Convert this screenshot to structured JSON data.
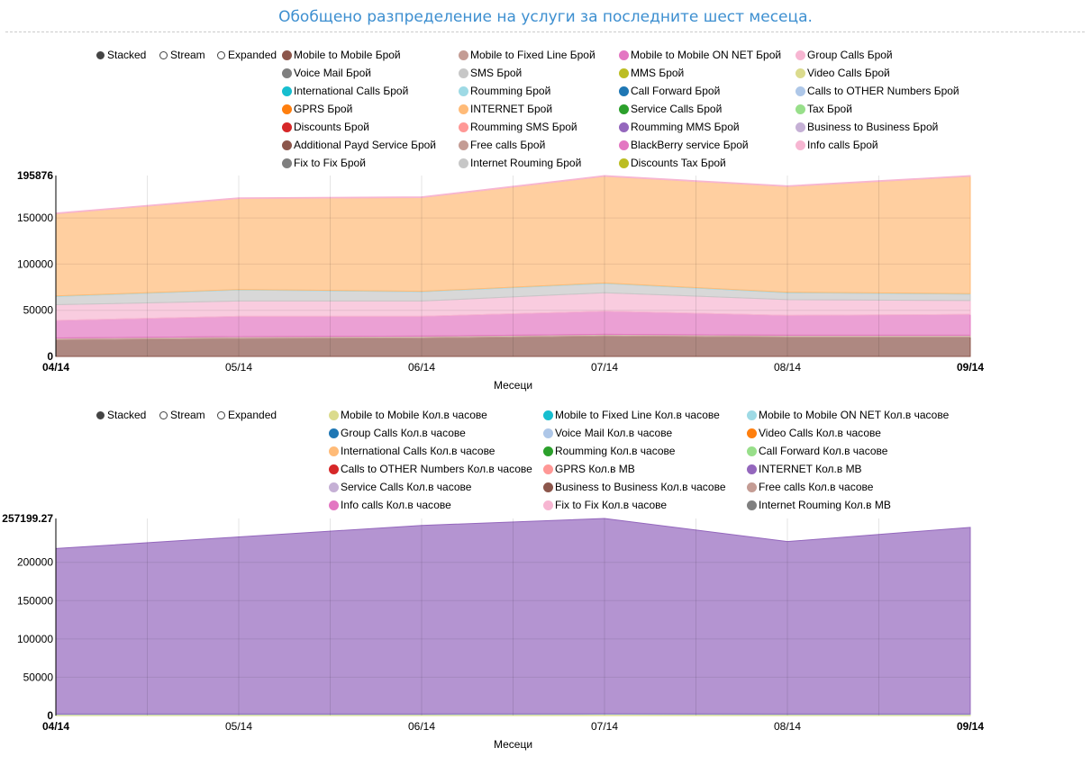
{
  "page_title": "Обобщено разпределение на услуги за последните шест месеца.",
  "controls": {
    "stacked": "Stacked",
    "stream": "Stream",
    "expanded": "Expanded",
    "selected": "Stacked"
  },
  "chart_data": [
    {
      "type": "area",
      "stacked": true,
      "xlabel": "Месеци",
      "categories": [
        "04/14",
        "05/14",
        "06/14",
        "07/14",
        "08/14",
        "09/14"
      ],
      "ylim": [
        0,
        195876
      ],
      "yticks": [
        "0",
        "50000",
        "100000",
        "150000",
        "195876"
      ],
      "grid": true,
      "legend": "top",
      "series": [
        {
          "name": "Mobile to Mobile Брой",
          "color": "#8c564b",
          "values": [
            18000,
            19500,
            20000,
            22000,
            21000,
            21000
          ]
        },
        {
          "name": "Mobile to Fixed Line Брой",
          "color": "#c49c94",
          "values": [
            2000,
            2000,
            2000,
            2000,
            2000,
            2000
          ]
        },
        {
          "name": "Mobile to Mobile ON NET Брой",
          "color": "#e377c2",
          "values": [
            19000,
            22000,
            21500,
            25000,
            21500,
            22500
          ]
        },
        {
          "name": "Group Calls Брой",
          "color": "#f7b6d2",
          "values": [
            17000,
            16500,
            16500,
            20000,
            17000,
            15000
          ]
        },
        {
          "name": "Voice Mail Брой",
          "color": "#7f7f7f",
          "values": [
            0,
            0,
            0,
            0,
            0,
            0
          ]
        },
        {
          "name": "SMS Брой",
          "color": "#c7c7c7",
          "values": [
            9000,
            12000,
            10000,
            10000,
            7500,
            7000
          ]
        },
        {
          "name": "MMS Брой",
          "color": "#bcbd22",
          "values": [
            0,
            0,
            0,
            0,
            0,
            0
          ]
        },
        {
          "name": "Video Calls Брой",
          "color": "#dbdb8d",
          "values": [
            0,
            0,
            0,
            0,
            0,
            0
          ]
        },
        {
          "name": "International Calls Брой",
          "color": "#17becf",
          "values": [
            0,
            0,
            0,
            0,
            0,
            0
          ]
        },
        {
          "name": "Roumming Брой",
          "color": "#9edae5",
          "values": [
            500,
            500,
            500,
            500,
            500,
            500
          ]
        },
        {
          "name": "Call Forward Брой",
          "color": "#1f77b4",
          "values": [
            0,
            0,
            0,
            0,
            0,
            0
          ]
        },
        {
          "name": "Calls to OTHER Numbers Брой",
          "color": "#aec7e8",
          "values": [
            0,
            0,
            0,
            0,
            0,
            0
          ]
        },
        {
          "name": "GPRS Брой",
          "color": "#ff7f0e",
          "values": [
            0,
            0,
            0,
            0,
            0,
            0
          ]
        },
        {
          "name": "INTERNET Брой",
          "color": "#ffbb78",
          "values": [
            89000,
            98500,
            101500,
            115500,
            114500,
            127000
          ]
        },
        {
          "name": "Service Calls Брой",
          "color": "#2ca02c",
          "values": [
            0,
            0,
            0,
            0,
            0,
            0
          ]
        },
        {
          "name": "Tax Брой",
          "color": "#98df8a",
          "values": [
            0,
            0,
            0,
            0,
            0,
            0
          ]
        },
        {
          "name": "Discounts Брой",
          "color": "#d62728",
          "values": [
            0,
            0,
            0,
            0,
            0,
            0
          ]
        },
        {
          "name": "Roumming SMS Брой",
          "color": "#ff9896",
          "values": [
            0,
            0,
            0,
            0,
            0,
            0
          ]
        },
        {
          "name": "Roumming MMS Брой",
          "color": "#9467bd",
          "values": [
            0,
            0,
            0,
            0,
            0,
            0
          ]
        },
        {
          "name": "Business to Business Брой",
          "color": "#c5b0d5",
          "values": [
            0,
            0,
            0,
            0,
            0,
            0
          ]
        },
        {
          "name": "Additional Payd Service Брой",
          "color": "#8c564b",
          "values": [
            0,
            0,
            0,
            0,
            0,
            0
          ]
        },
        {
          "name": "Free calls Брой",
          "color": "#c49c94",
          "values": [
            0,
            0,
            0,
            0,
            0,
            0
          ]
        },
        {
          "name": "BlackBerry service Брой",
          "color": "#e377c2",
          "values": [
            0,
            0,
            0,
            0,
            0,
            0
          ]
        },
        {
          "name": "Info calls Брой",
          "color": "#f7b6d2",
          "values": [
            800,
            800,
            800,
            876,
            800,
            800
          ]
        },
        {
          "name": "Fix to Fix Брой",
          "color": "#7f7f7f",
          "values": [
            0,
            0,
            0,
            0,
            0,
            0
          ]
        },
        {
          "name": "Internet Rouming Брой",
          "color": "#c7c7c7",
          "values": [
            0,
            0,
            0,
            0,
            0,
            0
          ]
        },
        {
          "name": "Discounts Tax Брой",
          "color": "#bcbd22",
          "values": [
            0,
            0,
            0,
            0,
            0,
            0
          ]
        }
      ]
    },
    {
      "type": "area",
      "stacked": true,
      "xlabel": "Месеци",
      "categories": [
        "04/14",
        "05/14",
        "06/14",
        "07/14",
        "08/14",
        "09/14"
      ],
      "ylim": [
        0,
        257199.27
      ],
      "yticks": [
        "0",
        "50000",
        "100000",
        "150000",
        "200000",
        "257199.27"
      ],
      "grid": true,
      "legend": "top",
      "series": [
        {
          "name": "Mobile to Mobile Кол.в часове",
          "color": "#dbdb8d",
          "values": [
            1400,
            1500,
            1500,
            1699.27,
            1500,
            1500
          ]
        },
        {
          "name": "Mobile to Fixed Line Кол.в часове",
          "color": "#17becf",
          "values": [
            0,
            0,
            0,
            0,
            0,
            0
          ]
        },
        {
          "name": "Mobile to Mobile ON NET Кол.в часове",
          "color": "#9edae5",
          "values": [
            600,
            600,
            600,
            600,
            600,
            600
          ]
        },
        {
          "name": "Group Calls Кол.в часове",
          "color": "#1f77b4",
          "values": [
            0,
            0,
            0,
            0,
            0,
            0
          ]
        },
        {
          "name": "Voice Mail Кол.в часове",
          "color": "#aec7e8",
          "values": [
            0,
            0,
            0,
            0,
            0,
            0
          ]
        },
        {
          "name": "Video Calls Кол.в часове",
          "color": "#ff7f0e",
          "values": [
            0,
            0,
            0,
            0,
            0,
            0
          ]
        },
        {
          "name": "International Calls Кол.в часове",
          "color": "#ffbb78",
          "values": [
            0,
            0,
            0,
            0,
            0,
            0
          ]
        },
        {
          "name": "Roumming Кол.в часове",
          "color": "#2ca02c",
          "values": [
            0,
            0,
            0,
            0,
            0,
            0
          ]
        },
        {
          "name": "Call Forward Кол.в часове",
          "color": "#98df8a",
          "values": [
            0,
            0,
            0,
            0,
            0,
            0
          ]
        },
        {
          "name": "Calls to OTHER Numbers Кол.в часове",
          "color": "#d62728",
          "values": [
            0,
            0,
            0,
            0,
            0,
            0
          ]
        },
        {
          "name": "GPRS Кол.в MB",
          "color": "#ff9896",
          "values": [
            0,
            0,
            0,
            0,
            0,
            0
          ]
        },
        {
          "name": "INTERNET Кол.в MB",
          "color": "#9467bd",
          "values": [
            216000,
            231000,
            246000,
            254900,
            225000,
            243500
          ]
        },
        {
          "name": "Service Calls Кол.в часове",
          "color": "#c5b0d5",
          "values": [
            0,
            0,
            0,
            0,
            0,
            0
          ]
        },
        {
          "name": "Business to Business Кол.в часове",
          "color": "#8c564b",
          "values": [
            0,
            0,
            0,
            0,
            0,
            0
          ]
        },
        {
          "name": "Free calls Кол.в часове",
          "color": "#c49c94",
          "values": [
            0,
            0,
            0,
            0,
            0,
            0
          ]
        },
        {
          "name": "Info calls Кол.в часове",
          "color": "#e377c2",
          "values": [
            0,
            0,
            0,
            0,
            0,
            0
          ]
        },
        {
          "name": "Fix to Fix Кол.в часове",
          "color": "#f7b6d2",
          "values": [
            0,
            0,
            0,
            0,
            0,
            0
          ]
        },
        {
          "name": "Internet Rouming Кол.в MB",
          "color": "#7f7f7f",
          "values": [
            0,
            0,
            0,
            0,
            0,
            0
          ]
        }
      ]
    }
  ]
}
